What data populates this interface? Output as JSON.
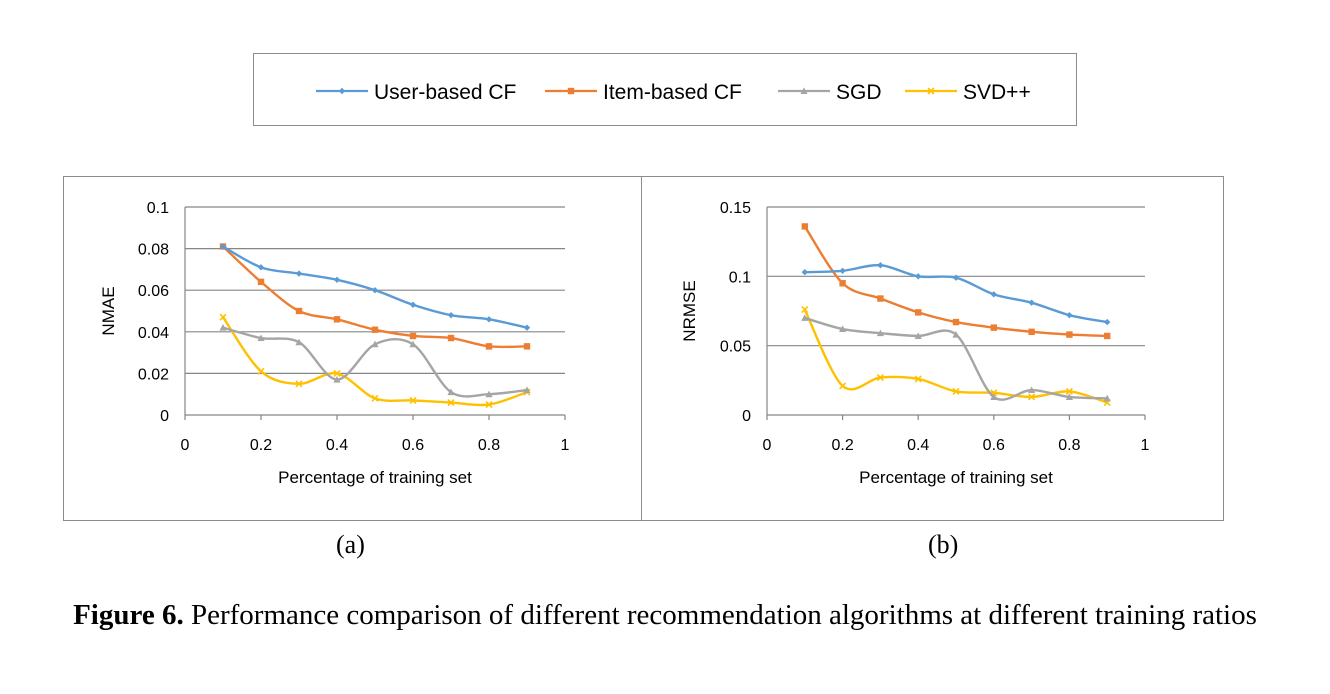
{
  "legend": {
    "items": [
      {
        "name": "User-based CF",
        "color": "#5b9bd5",
        "marker": "diamond"
      },
      {
        "name": "Item-based CF",
        "color": "#ed7d31",
        "marker": "square"
      },
      {
        "name": "SGD",
        "color": "#a5a5a5",
        "marker": "triangle"
      },
      {
        "name": "SVD++",
        "color": "#ffc000",
        "marker": "cross"
      }
    ]
  },
  "chart_data": [
    {
      "type": "line",
      "panel_label": "(a)",
      "xlabel": "Percentage of training set",
      "ylabel": "NMAE",
      "xlim": [
        0,
        1
      ],
      "ylim": [
        0,
        0.1
      ],
      "x_ticks": [
        "0",
        "0.2",
        "0.4",
        "0.6",
        "0.8",
        "1"
      ],
      "y_ticks": [
        "0",
        "0.02",
        "0.04",
        "0.06",
        "0.08",
        "0.1"
      ],
      "grid": "horizontal",
      "x": [
        0.1,
        0.2,
        0.3,
        0.4,
        0.5,
        0.6,
        0.7,
        0.8,
        0.9
      ],
      "series": [
        {
          "name": "User-based CF",
          "values": [
            0.081,
            0.071,
            0.068,
            0.065,
            0.06,
            0.053,
            0.048,
            0.046,
            0.042
          ]
        },
        {
          "name": "Item-based CF",
          "values": [
            0.081,
            0.064,
            0.05,
            0.046,
            0.041,
            0.038,
            0.037,
            0.033,
            0.033
          ]
        },
        {
          "name": "SGD",
          "values": [
            0.042,
            0.037,
            0.035,
            0.017,
            0.034,
            0.034,
            0.011,
            0.01,
            0.012
          ]
        },
        {
          "name": "SVD++",
          "values": [
            0.047,
            0.021,
            0.015,
            0.02,
            0.008,
            0.007,
            0.006,
            0.005,
            0.011
          ]
        }
      ]
    },
    {
      "type": "line",
      "panel_label": "(b)",
      "xlabel": "Percentage of training set",
      "ylabel": "NRMSE",
      "xlim": [
        0,
        1
      ],
      "ylim": [
        0,
        0.15
      ],
      "x_ticks": [
        "0",
        "0.2",
        "0.4",
        "0.6",
        "0.8",
        "1"
      ],
      "y_ticks": [
        "0",
        "0.05",
        "0.1",
        "0.15"
      ],
      "grid": "horizontal",
      "x": [
        0.1,
        0.2,
        0.3,
        0.4,
        0.5,
        0.6,
        0.7,
        0.8,
        0.9
      ],
      "series": [
        {
          "name": "User-based CF",
          "values": [
            0.103,
            0.104,
            0.108,
            0.1,
            0.099,
            0.087,
            0.081,
            0.072,
            0.067
          ]
        },
        {
          "name": "Item-based CF",
          "values": [
            0.136,
            0.095,
            0.084,
            0.074,
            0.067,
            0.063,
            0.06,
            0.058,
            0.057
          ]
        },
        {
          "name": "SGD",
          "values": [
            0.07,
            0.062,
            0.059,
            0.057,
            0.058,
            0.013,
            0.018,
            0.013,
            0.012
          ]
        },
        {
          "name": "SVD++",
          "values": [
            0.076,
            0.021,
            0.027,
            0.026,
            0.017,
            0.016,
            0.013,
            0.017,
            0.009
          ]
        }
      ]
    }
  ],
  "captions": {
    "a": "(a)",
    "b": "(b)",
    "figure_label": "Figure 6.",
    "figure_text": " Performance comparison of different recommendation algorithms at different training ratios"
  }
}
